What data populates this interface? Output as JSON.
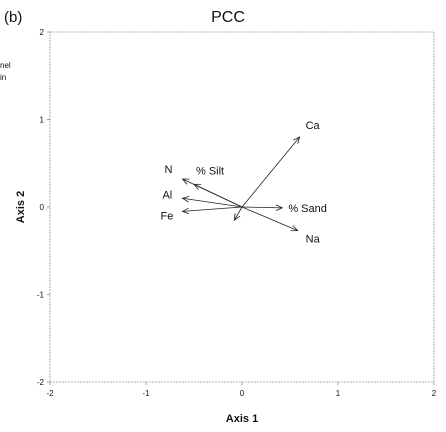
{
  "panel_label": "(b)",
  "side_text": [
    "nel",
    "in"
  ],
  "chart_data": {
    "type": "scatter",
    "title": "PCC",
    "xlabel": "Axis 1",
    "ylabel": "Axis 2",
    "xlim": [
      -2,
      2
    ],
    "ylim": [
      -2,
      2
    ],
    "x_ticks": [
      "-2",
      "-1",
      "0",
      "1",
      "2"
    ],
    "y_ticks": [
      "-2",
      "-1",
      "0",
      "1",
      "2"
    ],
    "grid": false,
    "vectors": [
      {
        "label": "Ca",
        "x": 0.6,
        "y": 0.8
      },
      {
        "label": "% Silt",
        "x": -0.5,
        "y": 0.26
      },
      {
        "label": "N",
        "x": -0.62,
        "y": 0.32
      },
      {
        "label": "Al",
        "x": -0.62,
        "y": 0.1
      },
      {
        "label": "Fe",
        "x": -0.62,
        "y": -0.05
      },
      {
        "label": "% Sand",
        "x": 0.42,
        "y": -0.01
      },
      {
        "label": "Na",
        "x": 0.58,
        "y": -0.27
      },
      {
        "label": "",
        "x": -0.08,
        "y": -0.15
      }
    ]
  }
}
